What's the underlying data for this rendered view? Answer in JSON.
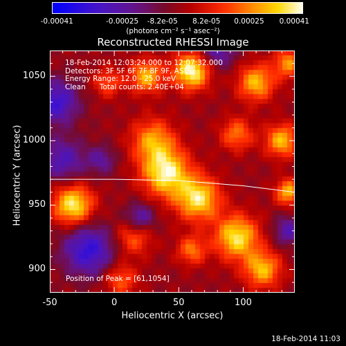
{
  "colorbar": {
    "ticks": [
      "-0.00041",
      "-0.00025",
      "-8.2e-05",
      "8.2e-05",
      "0.00025",
      "0.00041"
    ],
    "units": "(photons cm⁻² s⁻¹ asec⁻²)"
  },
  "title": "Reconstructed RHESSI Image",
  "info": {
    "line1": "18-Feb-2014 12:03:24.000 to 12:07:32.000",
    "line2": "Detectors: 3F 5F 6F 7F 8F 9F, ASEC",
    "line3": "Energy Range: 12.0 - 25.0 keV",
    "line4": "Clean      Total counts: 2.40E+04",
    "peak": "Position of Peak = [61,1054]"
  },
  "timestamp": "18-Feb-2014 11:03",
  "chart_data": {
    "type": "heatmap",
    "title": "Reconstructed RHESSI Image",
    "xlabel": "Heliocentric X (arcsec)",
    "ylabel": "Heliocentric Y (arcsec)",
    "xlim": [
      -50,
      140
    ],
    "ylim": [
      882,
      1070
    ],
    "xticks": [
      "-50",
      "0",
      "50",
      "100"
    ],
    "yticks": [
      "900",
      "950",
      "1000",
      "1050"
    ],
    "xtick_values": [
      -50,
      0,
      50,
      100
    ],
    "ytick_values": [
      900,
      950,
      1000,
      1050
    ],
    "colorscale": "rainbow (purple-blue to white)",
    "clim": [
      -0.00041,
      0.00041
    ],
    "peak": [
      61,
      1054
    ],
    "limb_curve": {
      "x": [
        -50,
        0,
        50,
        100,
        140
      ],
      "y": [
        970,
        970,
        969,
        965,
        960
      ]
    },
    "blobs": [
      {
        "x": 60,
        "y": 1054,
        "amp": 0.00041,
        "sigma": 10
      },
      {
        "x": 25,
        "y": 1050,
        "amp": 0.0003,
        "sigma": 9
      },
      {
        "x": 110,
        "y": 1045,
        "amp": 0.0003,
        "sigma": 10
      },
      {
        "x": 130,
        "y": 1000,
        "amp": 0.0003,
        "sigma": 9
      },
      {
        "x": 95,
        "y": 1005,
        "amp": 0.00022,
        "sigma": 9
      },
      {
        "x": 40,
        "y": 975,
        "amp": 0.00038,
        "sigma": 13
      },
      {
        "x": 65,
        "y": 955,
        "amp": 0.00036,
        "sigma": 12
      },
      {
        "x": 30,
        "y": 1000,
        "amp": 0.00026,
        "sigma": 12
      },
      {
        "x": -32,
        "y": 950,
        "amp": 0.00038,
        "sigma": 11
      },
      {
        "x": 95,
        "y": 925,
        "amp": 0.00036,
        "sigma": 12
      },
      {
        "x": 115,
        "y": 900,
        "amp": 0.0003,
        "sigma": 10
      },
      {
        "x": 60,
        "y": 915,
        "amp": 0.00022,
        "sigma": 8
      },
      {
        "x": 15,
        "y": 925,
        "amp": 0.0002,
        "sigma": 10
      },
      {
        "x": 5,
        "y": 892,
        "amp": 0.0002,
        "sigma": 9
      },
      {
        "x": 135,
        "y": 960,
        "amp": 0.0003,
        "sigma": 7
      },
      {
        "x": 135,
        "y": 1060,
        "amp": 0.00025,
        "sigma": 8
      },
      {
        "x": -5,
        "y": 1045,
        "amp": 0.00018,
        "sigma": 8
      },
      {
        "x": -45,
        "y": 1030,
        "amp": -0.00028,
        "sigma": 12
      },
      {
        "x": -40,
        "y": 985,
        "amp": -0.00022,
        "sigma": 12
      },
      {
        "x": -20,
        "y": 915,
        "amp": -0.0003,
        "sigma": 14
      },
      {
        "x": 20,
        "y": 940,
        "amp": -0.00022,
        "sigma": 8
      },
      {
        "x": 135,
        "y": 930,
        "amp": -0.0002,
        "sigma": 8
      },
      {
        "x": 80,
        "y": 1070,
        "amp": -0.0002,
        "sigma": 10
      },
      {
        "x": -10,
        "y": 985,
        "amp": -0.00016,
        "sigma": 8
      }
    ]
  }
}
